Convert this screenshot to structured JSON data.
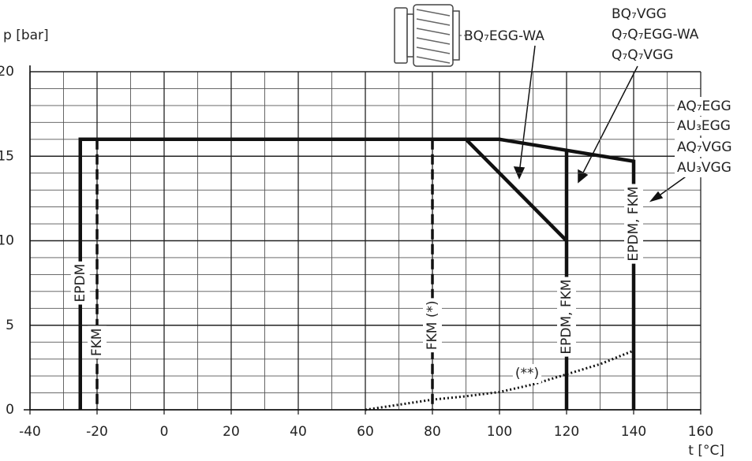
{
  "chart_data": {
    "type": "line",
    "x_label": "t [°C]",
    "y_label": "p [bar]",
    "xlim": [
      -40,
      160
    ],
    "ylim": [
      0,
      20
    ],
    "xticks": [
      -40,
      -20,
      0,
      20,
      40,
      60,
      80,
      100,
      120,
      140,
      160
    ],
    "yticks": [
      0,
      5,
      10,
      15,
      20
    ],
    "grid": true,
    "grid_minor": {
      "x": 10,
      "y": 1
    },
    "series": [
      {
        "style": "solid",
        "color": "#111111",
        "x": [
          -25,
          -25,
          100,
          140,
          140
        ],
        "values": [
          0,
          16,
          16,
          14.7,
          0
        ]
      },
      {
        "style": "solid",
        "color": "#111111",
        "x": [
          90,
          120
        ],
        "values": [
          16,
          10
        ]
      },
      {
        "style": "solid",
        "color": "#111111",
        "x": [
          120,
          120
        ],
        "values": [
          15.35,
          0
        ]
      },
      {
        "style": "dashed",
        "color": "#111111",
        "x": [
          -20,
          -20
        ],
        "values": [
          16,
          0
        ]
      },
      {
        "style": "dashed",
        "color": "#111111",
        "x": [
          80,
          80
        ],
        "values": [
          16,
          0
        ]
      },
      {
        "style": "dotted",
        "color": "#111111",
        "x": [
          60,
          70,
          80,
          90,
          100,
          110,
          120,
          130,
          140
        ],
        "values": [
          0,
          0.3,
          0.6,
          0.8,
          1.05,
          1.5,
          2.1,
          2.7,
          3.5
        ]
      }
    ],
    "annotations": [
      "EPDM",
      "FKM",
      "FKM (*)",
      "EPDM, FKM",
      "EPDM, FKM",
      "(**)",
      "BQ₇EGG-WA",
      "BQ₇VGG",
      "Q₇Q₇EGG-WA",
      "Q₇Q₇VGG",
      "AQ₇EGG",
      "AU₃EGG",
      "AQ₇VGG",
      "AU₃VGG"
    ]
  }
}
